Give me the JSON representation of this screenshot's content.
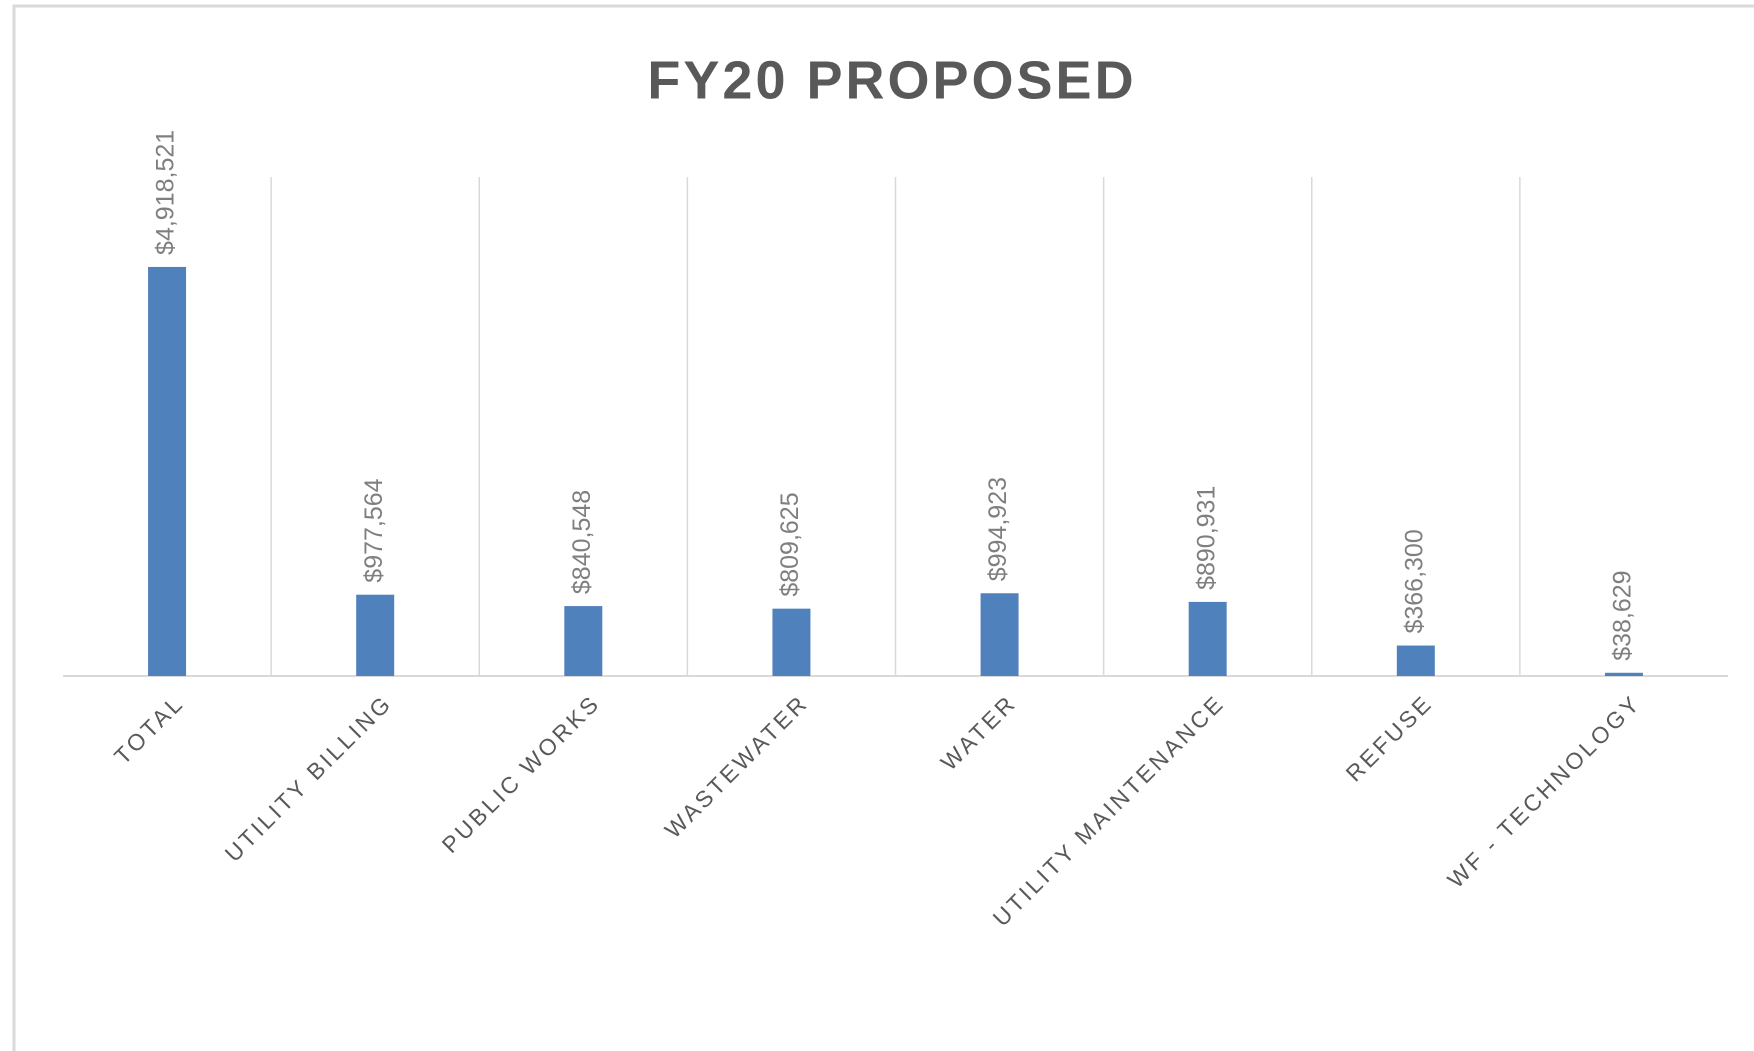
{
  "chart_data": {
    "type": "bar",
    "title": "FY20 PROPOSED",
    "categories": [
      "TOTAL",
      "UTILITY BILLING",
      "PUBLIC WORKS",
      "WASTEWATER",
      "WATER",
      "UTILITY MAINTENANCE",
      "REFUSE",
      "WF - TECHNOLOGY"
    ],
    "values": [
      4918521,
      977564,
      840548,
      809625,
      994923,
      890931,
      366300,
      38629
    ],
    "value_labels": [
      "$4,918,521",
      "$977,564",
      "$840,548",
      "$809,625",
      "$994,923",
      "$890,931",
      "$366,300",
      "$38,629"
    ],
    "color": "#4f81bd",
    "ylim": [
      0,
      6000000
    ]
  }
}
